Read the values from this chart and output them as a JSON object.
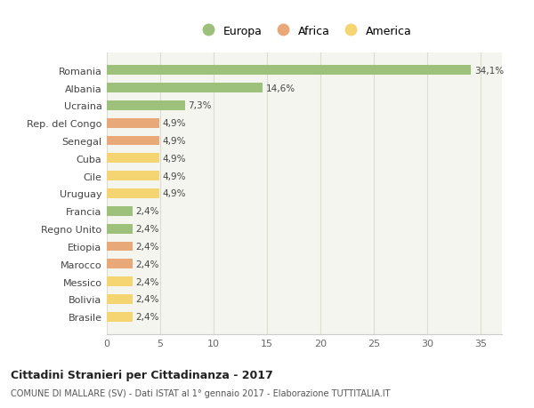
{
  "categories": [
    "Brasile",
    "Bolivia",
    "Messico",
    "Marocco",
    "Etiopia",
    "Regno Unito",
    "Francia",
    "Uruguay",
    "Cile",
    "Cuba",
    "Senegal",
    "Rep. del Congo",
    "Ucraina",
    "Albania",
    "Romania"
  ],
  "values": [
    2.4,
    2.4,
    2.4,
    2.4,
    2.4,
    2.4,
    2.4,
    4.9,
    4.9,
    4.9,
    4.9,
    4.9,
    7.3,
    14.6,
    34.1
  ],
  "colors": [
    "#f5d472",
    "#f5d472",
    "#f5d472",
    "#e8a878",
    "#e8a878",
    "#9dc17a",
    "#9dc17a",
    "#f5d472",
    "#f5d472",
    "#f5d472",
    "#e8a878",
    "#e8a878",
    "#9dc17a",
    "#9dc17a",
    "#9dc17a"
  ],
  "labels": [
    "2,4%",
    "2,4%",
    "2,4%",
    "2,4%",
    "2,4%",
    "2,4%",
    "2,4%",
    "4,9%",
    "4,9%",
    "4,9%",
    "4,9%",
    "4,9%",
    "7,3%",
    "14,6%",
    "34,1%"
  ],
  "xlim": [
    0,
    37
  ],
  "xticks": [
    0,
    5,
    10,
    15,
    20,
    25,
    30,
    35
  ],
  "legend_labels": [
    "Europa",
    "Africa",
    "America"
  ],
  "legend_colors": [
    "#9dc17a",
    "#e8a878",
    "#f5d472"
  ],
  "title": "Cittadini Stranieri per Cittadinanza - 2017",
  "subtitle": "COMUNE DI MALLARE (SV) - Dati ISTAT al 1° gennaio 2017 - Elaborazione TUTTITALIA.IT",
  "bg_color": "#f5f5f0",
  "grid_color": "#ddddcc"
}
